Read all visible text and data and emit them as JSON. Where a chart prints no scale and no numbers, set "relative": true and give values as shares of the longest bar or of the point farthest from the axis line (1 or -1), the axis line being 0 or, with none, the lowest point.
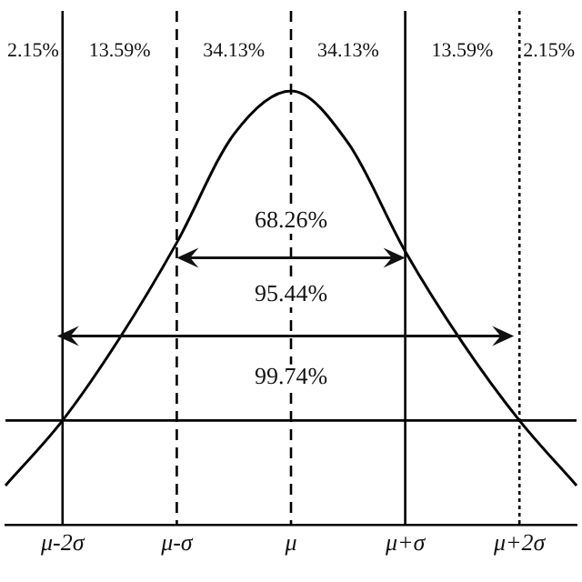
{
  "chart_data": {
    "type": "line",
    "relative": true,
    "categories": [
      null,
      "μ-2σ",
      null,
      "μ-σ",
      null,
      "μ",
      null,
      "μ+σ",
      null,
      "μ+2σ",
      null
    ],
    "series": [
      {
        "color": "#000000",
        "values": [
          0.09,
          0.24,
          0.43,
          0.65,
          0.9,
          1,
          0.88,
          0.63,
          0.42,
          0.24,
          0.09
        ]
      }
    ],
    "tick_labels": "x",
    "grid": false,
    "legend": false,
    "marker": "none",
    "line_style": "solid",
    "ref_lines": [
      {
        "axis": "x",
        "value": "μ-2σ",
        "line_style": "solid",
        "color": "#000000"
      },
      {
        "axis": "x",
        "value": "μ-σ",
        "line_style": "dashed",
        "color": "#000000"
      },
      {
        "axis": "x",
        "value": "μ",
        "line_style": "dashed",
        "color": "#000000"
      },
      {
        "axis": "x",
        "value": "μ+σ",
        "line_style": "solid",
        "color": "#000000"
      },
      {
        "axis": "x",
        "value": "μ+2σ",
        "line_style": "dotted",
        "color": "#000000"
      },
      {
        "axis": "y",
        "value": 0.24,
        "line_style": "solid",
        "color": "#000000"
      }
    ],
    "annotations": [
      "2.15%",
      "13.59%",
      "34.13%",
      "34.13%",
      "13.59%",
      "2.15%",
      "68.26%",
      "95.44%",
      "99.74%"
    ]
  }
}
